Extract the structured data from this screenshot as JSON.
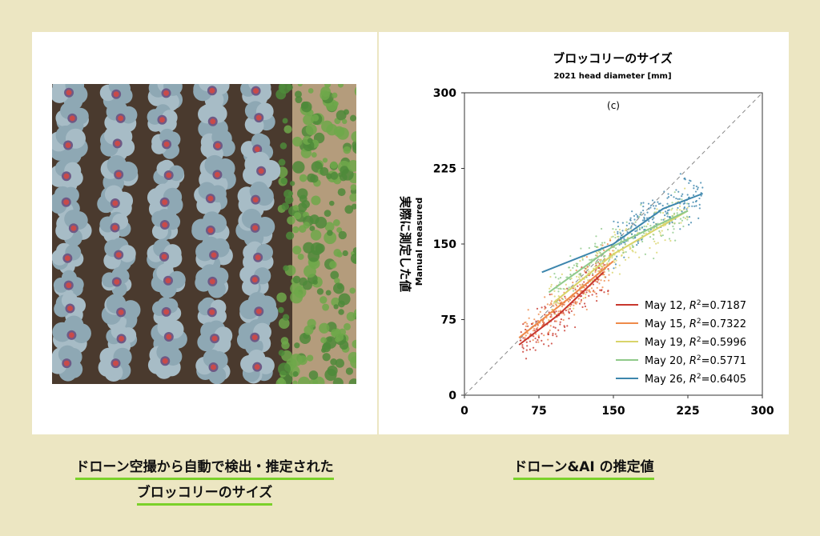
{
  "left_caption": {
    "line1": "ドローン空撮から自動で検出・推定された",
    "line2": "ブロッコリーのサイズ"
  },
  "right_caption": "ドローン&AI の推定値",
  "photo": {
    "icon": "broccoli-field-aerial-photo"
  },
  "chart_data": {
    "type": "scatter",
    "title": "ブロッコリーのサイズ",
    "subtitle": "2021 head diameter [mm]",
    "panel_label": "(c)",
    "ylabel_jp": "実際に測定した値",
    "ylabel": "Manual measured",
    "xlabel": "",
    "xlim": [
      0,
      300
    ],
    "ylim": [
      0,
      300
    ],
    "xticks": [
      0,
      75,
      150,
      225,
      300
    ],
    "yticks": [
      0,
      75,
      150,
      225,
      300
    ],
    "grid": false,
    "identity_line": true,
    "legend_position": "bottom-right",
    "series": [
      {
        "name": "May 12",
        "r2": "0.7187",
        "color": "#c8372d",
        "fit": [
          [
            55,
            50
          ],
          [
            95,
            80
          ],
          [
            140,
            122
          ]
        ],
        "spread": [
          55,
          145
        ]
      },
      {
        "name": "May 15",
        "r2": "0.7322",
        "color": "#ee8a4a",
        "fit": [
          [
            55,
            57
          ],
          [
            100,
            92
          ],
          [
            150,
            133
          ]
        ],
        "spread": [
          60,
          150
        ]
      },
      {
        "name": "May 19",
        "r2": "0.5996",
        "color": "#d9d46a",
        "fit": [
          [
            90,
            92
          ],
          [
            150,
            140
          ],
          [
            225,
            183
          ]
        ],
        "spread": [
          85,
          225
        ]
      },
      {
        "name": "May 20",
        "r2": "0.5771",
        "color": "#8fc98a",
        "fit": [
          [
            85,
            102
          ],
          [
            150,
            148
          ],
          [
            225,
            183
          ]
        ],
        "spread": [
          90,
          225
        ]
      },
      {
        "name": "May 26",
        "r2": "0.6405",
        "color": "#3d86ad",
        "fit": [
          [
            78,
            122
          ],
          [
            150,
            150
          ],
          [
            200,
            185
          ],
          [
            240,
            200
          ]
        ],
        "spread": [
          150,
          240
        ]
      }
    ]
  }
}
